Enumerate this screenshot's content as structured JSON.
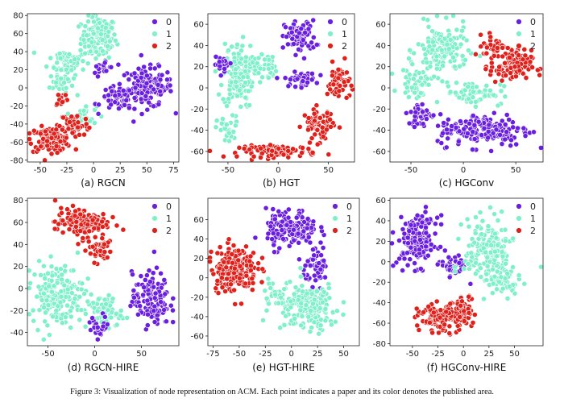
{
  "figure_caption": "Figure 3: Visualization of node representation on ACM. Each point indicates a paper and its color denotes the published area.",
  "colors": {
    "class0": "#6a1fe0",
    "class1": "#7ff0c9",
    "class2": "#e0201a"
  },
  "chart_data": [
    {
      "type": "scatter",
      "caption": "(a) RGCN",
      "xlim": [
        -62,
        80
      ],
      "ylim": [
        -82,
        82
      ],
      "xticks": [
        -50,
        -25,
        0,
        25,
        50,
        75
      ],
      "yticks": [
        -80,
        -60,
        -40,
        -20,
        0,
        20,
        40,
        60,
        80
      ],
      "legend": {
        "labels": [
          "0",
          "1",
          "2"
        ],
        "position": "top-right"
      },
      "clusters": [
        {
          "class": "1",
          "points": [
            [
              5,
              55,
              15,
              22,
              130
            ],
            [
              -25,
              30,
              16,
              14,
              60
            ],
            [
              -30,
              5,
              10,
              12,
              30
            ],
            [
              -8,
              -30,
              10,
              10,
              25
            ]
          ]
        },
        {
          "class": "0",
          "points": [
            [
              50,
              0,
              22,
              20,
              150
            ],
            [
              22,
              -12,
              14,
              12,
              50
            ],
            [
              10,
              22,
              10,
              10,
              20
            ]
          ]
        },
        {
          "class": "2",
          "points": [
            [
              -40,
              -57,
              18,
              12,
              130
            ],
            [
              -18,
              -40,
              12,
              12,
              50
            ],
            [
              -30,
              -12,
              6,
              8,
              12
            ]
          ]
        }
      ]
    },
    {
      "type": "scatter",
      "caption": "(b) HGT",
      "xlim": [
        -70,
        76
      ],
      "ylim": [
        -70,
        70
      ],
      "xticks": [
        -50,
        0,
        50
      ],
      "yticks": [
        -60,
        -40,
        -20,
        0,
        20,
        40,
        60
      ],
      "legend": {
        "labels": [
          "0",
          "1",
          "2"
        ],
        "position": "top-right"
      },
      "clusters": [
        {
          "class": "1",
          "points": [
            [
              -40,
              12,
              14,
              28,
              140
            ],
            [
              -15,
              20,
              12,
              12,
              40
            ],
            [
              -50,
              -40,
              10,
              12,
              30
            ]
          ]
        },
        {
          "class": "0",
          "points": [
            [
              22,
              48,
              14,
              14,
              80
            ],
            [
              22,
              8,
              14,
              6,
              50
            ],
            [
              -55,
              22,
              8,
              6,
              20
            ]
          ]
        },
        {
          "class": "2",
          "points": [
            [
              0,
              -60,
              35,
              5,
              90
            ],
            [
              40,
              -35,
              14,
              14,
              70
            ],
            [
              60,
              5,
              10,
              16,
              50
            ]
          ]
        }
      ]
    },
    {
      "type": "scatter",
      "caption": "(c) HGConv",
      "xlim": [
        -70,
        76
      ],
      "ylim": [
        -70,
        70
      ],
      "xticks": [
        -50,
        0,
        50
      ],
      "yticks": [
        -60,
        -40,
        -20,
        0,
        20,
        40,
        60
      ],
      "legend": {
        "labels": [
          "0",
          "1",
          "2"
        ],
        "position": "top-right"
      },
      "clusters": [
        {
          "class": "1",
          "points": [
            [
              -20,
              35,
              22,
              22,
              150
            ],
            [
              -45,
              5,
              14,
              12,
              50
            ],
            [
              10,
              -5,
              25,
              10,
              60
            ]
          ]
        },
        {
          "class": "2",
          "points": [
            [
              45,
              20,
              18,
              14,
              110
            ],
            [
              30,
              40,
              10,
              10,
              40
            ]
          ]
        },
        {
          "class": "0",
          "points": [
            [
              20,
              -40,
              40,
              14,
              170
            ],
            [
              -40,
              -25,
              12,
              10,
              40
            ]
          ]
        }
      ]
    },
    {
      "type": "scatter",
      "caption": "(d) RGCN-HIRE",
      "xlim": [
        -72,
        90
      ],
      "ylim": [
        -52,
        82
      ],
      "xticks": [
        -50,
        0,
        50
      ],
      "yticks": [
        -40,
        -20,
        0,
        20,
        40,
        60,
        80
      ],
      "legend": {
        "labels": [
          "0",
          "1",
          "2"
        ],
        "position": "top-right"
      },
      "clusters": [
        {
          "class": "1",
          "points": [
            [
              -40,
              -5,
              25,
              25,
              180
            ],
            [
              10,
              -22,
              18,
              14,
              70
            ]
          ]
        },
        {
          "class": "2",
          "points": [
            [
              -15,
              60,
              25,
              12,
              140
            ],
            [
              5,
              35,
              12,
              10,
              40
            ]
          ]
        },
        {
          "class": "0",
          "points": [
            [
              60,
              -10,
              18,
              22,
              140
            ],
            [
              5,
              -35,
              10,
              10,
              25
            ]
          ]
        }
      ]
    },
    {
      "type": "scatter",
      "caption": "(e) HGT-HIRE",
      "xlim": [
        -80,
        65
      ],
      "ylim": [
        -70,
        82
      ],
      "xticks": [
        -75,
        -50,
        -25,
        0,
        25,
        50
      ],
      "yticks": [
        -60,
        -40,
        -20,
        0,
        20,
        40,
        60
      ],
      "legend": {
        "labels": [
          "0",
          "1",
          "2"
        ],
        "position": "top-right"
      },
      "clusters": [
        {
          "class": "2",
          "points": [
            [
              -55,
              10,
              20,
              22,
              190
            ]
          ]
        },
        {
          "class": "0",
          "points": [
            [
              0,
              50,
              22,
              18,
              150
            ],
            [
              25,
              10,
              12,
              14,
              50
            ]
          ]
        },
        {
          "class": "1",
          "points": [
            [
              15,
              -30,
              28,
              22,
              190
            ],
            [
              -20,
              -15,
              8,
              10,
              20
            ]
          ]
        }
      ]
    },
    {
      "type": "scatter",
      "caption": "(f) HGConv-HIRE",
      "xlim": [
        -72,
        78
      ],
      "ylim": [
        -82,
        62
      ],
      "xticks": [
        -50,
        -25,
        0,
        25,
        50
      ],
      "yticks": [
        -80,
        -60,
        -40,
        -20,
        0,
        20,
        40,
        60
      ],
      "legend": {
        "labels": [
          "0",
          "1",
          "2"
        ],
        "position": "top-right"
      },
      "clusters": [
        {
          "class": "0",
          "points": [
            [
              -45,
              20,
              18,
              22,
              160
            ],
            [
              -10,
              -5,
              12,
              10,
              40
            ]
          ]
        },
        {
          "class": "1",
          "points": [
            [
              25,
              10,
              22,
              30,
              170
            ],
            [
              40,
              -20,
              14,
              12,
              50
            ]
          ]
        },
        {
          "class": "2",
          "points": [
            [
              -20,
              -55,
              22,
              12,
              150
            ],
            [
              0,
              -42,
              10,
              8,
              30
            ]
          ]
        }
      ]
    }
  ]
}
